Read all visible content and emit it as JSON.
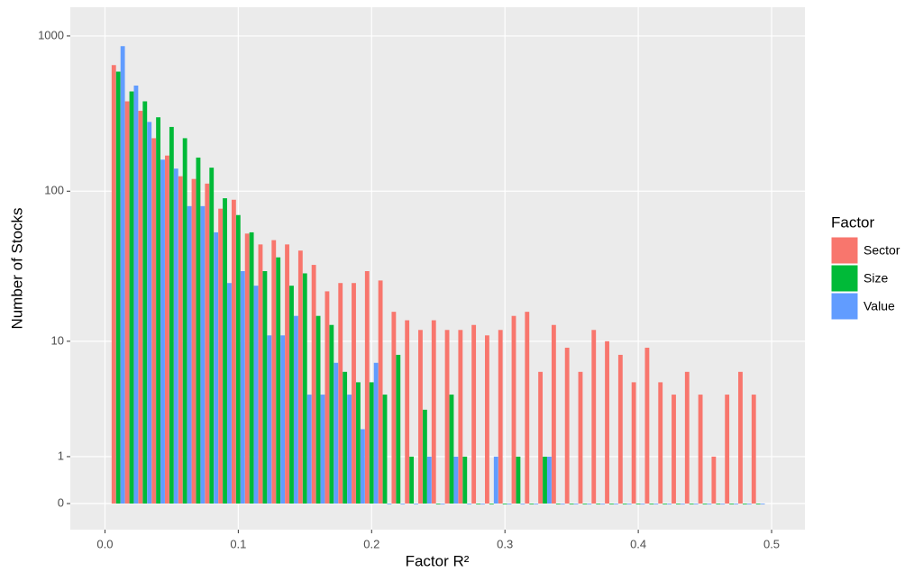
{
  "chart_data": {
    "type": "bar",
    "y_scale": "log1p",
    "grid": true,
    "xlabel": "Factor R²",
    "ylabel": "Number of Stocks",
    "legend_title": "Factor",
    "legend_position": "right",
    "xlim": [
      -0.026,
      0.525
    ],
    "xticks": [
      {
        "value": 0,
        "label": "0.0"
      },
      0.1,
      0.2,
      0.3,
      0.4,
      0.5
    ],
    "ylim": [
      -0.32,
      1530
    ],
    "yticks": [
      0,
      1,
      10,
      100,
      1000
    ],
    "x": [
      0.01,
      0.02,
      0.03,
      0.04,
      0.05,
      0.06,
      0.07,
      0.08,
      0.09,
      0.1,
      0.11,
      0.12,
      0.13,
      0.14,
      0.15,
      0.16,
      0.17,
      0.18,
      0.19,
      0.2,
      0.21,
      0.22,
      0.23,
      0.24,
      0.25,
      0.26,
      0.27,
      0.28,
      0.29,
      0.3,
      0.31,
      0.32,
      0.33,
      0.34,
      0.35,
      0.36,
      0.37,
      0.38,
      0.39,
      0.4,
      0.41,
      0.42,
      0.43,
      0.44,
      0.45,
      0.46,
      0.47,
      0.48,
      0.49
    ],
    "series": [
      {
        "name": "Sector",
        "color": "#F8766D",
        "values": [
          650,
          380,
          330,
          220,
          170,
          125,
          120,
          112,
          77,
          88,
          53,
          45,
          48,
          45,
          41,
          33,
          22,
          25,
          25,
          30,
          26,
          16,
          14,
          12,
          14,
          12,
          12,
          13,
          11,
          12,
          15,
          16,
          6,
          13,
          9,
          6,
          12,
          10,
          8,
          5,
          9,
          5,
          4,
          6,
          4,
          1,
          4,
          6,
          4
        ]
      },
      {
        "name": "Size",
        "color": "#00BA38",
        "values": [
          590,
          440,
          380,
          300,
          260,
          220,
          165,
          142,
          90,
          70,
          54,
          30,
          37,
          24,
          29,
          15,
          13,
          6,
          5,
          5,
          4,
          8,
          1,
          3,
          0,
          4,
          1,
          0,
          0,
          0,
          1,
          0,
          1,
          0,
          0,
          0,
          0,
          0,
          0,
          0,
          0,
          0,
          0,
          0,
          0,
          0,
          0,
          0,
          0
        ]
      },
      {
        "name": "Value",
        "color": "#619CFF",
        "values": [
          860,
          480,
          280,
          160,
          140,
          80,
          80,
          54,
          25,
          30,
          24,
          11,
          11,
          15,
          4,
          4,
          7,
          4,
          2,
          7,
          0,
          0,
          0,
          1,
          0,
          1,
          0,
          0,
          1,
          0,
          0,
          0,
          1,
          0,
          0,
          0,
          0,
          0,
          0,
          0,
          0,
          0,
          0,
          0,
          0,
          0,
          0,
          0,
          0
        ]
      }
    ]
  }
}
